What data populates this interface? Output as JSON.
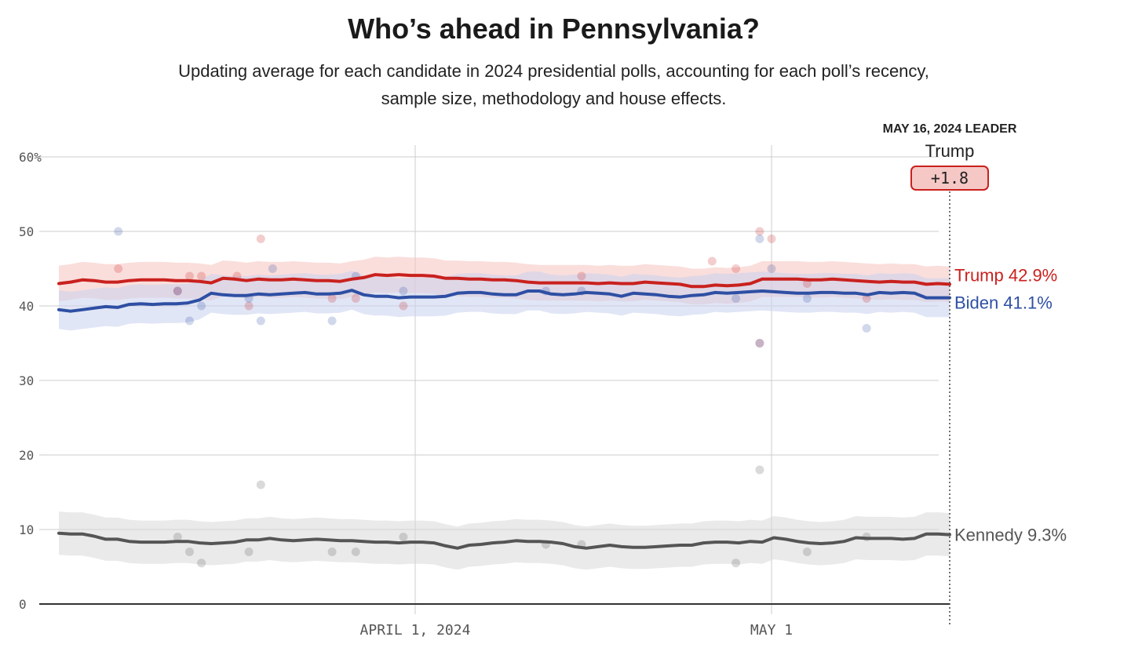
{
  "title": "Who’s ahead in Pennsylvania?",
  "subtitle_lines": [
    "Updating average for each candidate in 2024 presidential polls, accounting for each poll’s recency,",
    "sample size, methodology and house effects."
  ],
  "leader": {
    "heading": "MAY 16, 2024 LEADER",
    "name": "Trump",
    "margin": "+1.8"
  },
  "colors": {
    "trump": "#c9211e",
    "trump_band": "#f5c2c0",
    "biden": "#2e4fa3",
    "biden_band": "#c9d2ee",
    "kennedy": "#555555",
    "kennedy_band": "#d9d9d9",
    "grid": "#cccccc",
    "axis": "#333333"
  },
  "chart_data": {
    "type": "line",
    "x_range": [
      "2024-03-02",
      "2024-05-16"
    ],
    "ylim": [
      0,
      60
    ],
    "y_ticks": [
      0,
      10,
      20,
      30,
      40,
      50,
      60
    ],
    "y_tick_labels": [
      "0",
      "10",
      "20",
      "30",
      "40",
      "50",
      "60%"
    ],
    "x_ticks": [
      {
        "date": "2024-04-01",
        "label": "APRIL 1, 2024"
      },
      {
        "date": "2024-05-01",
        "label": "MAY 1"
      }
    ],
    "grid": true,
    "series": [
      {
        "name": "Trump",
        "end_label": "Trump 42.9%",
        "color_key": "trump",
        "band_width": 2.4,
        "average": [
          43.0,
          43.2,
          43.5,
          43.4,
          43.2,
          43.2,
          43.4,
          43.5,
          43.5,
          43.5,
          43.4,
          43.4,
          43.3,
          43.1,
          43.7,
          43.6,
          43.4,
          43.6,
          43.5,
          43.5,
          43.6,
          43.5,
          43.4,
          43.4,
          43.3,
          43.6,
          43.8,
          44.2,
          44.1,
          44.2,
          44.1,
          44.1,
          44.0,
          43.7,
          43.7,
          43.6,
          43.6,
          43.5,
          43.5,
          43.4,
          43.2,
          43.1,
          43.1,
          43.1,
          43.1,
          43.1,
          43.0,
          43.1,
          43.0,
          43.0,
          43.2,
          43.1,
          43.0,
          42.9,
          42.6,
          42.6,
          42.8,
          42.7,
          42.8,
          43.0,
          43.6,
          43.6,
          43.6,
          43.6,
          43.5,
          43.5,
          43.6,
          43.5,
          43.4,
          43.3,
          43.2,
          43.3,
          43.2,
          43.2,
          42.9,
          43.0,
          42.9
        ],
        "polls": [
          [
            "2024-03-07",
            45
          ],
          [
            "2024-03-12",
            42
          ],
          [
            "2024-03-13",
            44
          ],
          [
            "2024-03-14",
            44
          ],
          [
            "2024-03-17",
            44
          ],
          [
            "2024-03-18",
            40
          ],
          [
            "2024-03-19",
            49
          ],
          [
            "2024-03-25",
            41
          ],
          [
            "2024-03-27",
            41
          ],
          [
            "2024-03-31",
            40
          ],
          [
            "2024-04-15",
            44
          ],
          [
            "2024-04-26",
            46
          ],
          [
            "2024-04-30",
            50
          ],
          [
            "2024-04-30",
            35
          ],
          [
            "2024-04-28",
            45
          ],
          [
            "2024-05-01",
            49
          ],
          [
            "2024-05-04",
            43
          ],
          [
            "2024-05-09",
            41
          ]
        ]
      },
      {
        "name": "Biden",
        "end_label": "Biden 41.1%",
        "color_key": "biden",
        "band_width": 2.6,
        "average": [
          39.5,
          39.3,
          39.5,
          39.7,
          39.9,
          39.8,
          40.2,
          40.3,
          40.2,
          40.3,
          40.3,
          40.4,
          40.8,
          41.7,
          41.5,
          41.4,
          41.4,
          41.6,
          41.5,
          41.6,
          41.7,
          41.8,
          41.6,
          41.6,
          41.7,
          42.1,
          41.5,
          41.3,
          41.3,
          41.1,
          41.2,
          41.2,
          41.2,
          41.3,
          41.7,
          41.8,
          41.8,
          41.6,
          41.5,
          41.5,
          42.0,
          42.0,
          41.6,
          41.5,
          41.6,
          41.8,
          41.7,
          41.6,
          41.3,
          41.7,
          41.6,
          41.5,
          41.3,
          41.2,
          41.4,
          41.5,
          41.8,
          41.7,
          41.8,
          41.9,
          42.0,
          41.9,
          41.8,
          41.7,
          41.7,
          41.8,
          41.8,
          41.7,
          41.7,
          41.5,
          41.8,
          41.7,
          41.8,
          41.7,
          41.1,
          41.1,
          41.1
        ],
        "polls": [
          [
            "2024-03-07",
            50
          ],
          [
            "2024-03-12",
            42
          ],
          [
            "2024-03-13",
            38
          ],
          [
            "2024-03-14",
            40
          ],
          [
            "2024-03-18",
            41
          ],
          [
            "2024-03-19",
            38
          ],
          [
            "2024-03-20",
            45
          ],
          [
            "2024-03-25",
            38
          ],
          [
            "2024-03-27",
            44
          ],
          [
            "2024-03-31",
            42
          ],
          [
            "2024-04-12",
            42
          ],
          [
            "2024-04-15",
            42
          ],
          [
            "2024-04-30",
            49
          ],
          [
            "2024-04-30",
            35
          ],
          [
            "2024-05-01",
            45
          ],
          [
            "2024-04-28",
            41
          ],
          [
            "2024-05-04",
            41
          ],
          [
            "2024-05-09",
            37
          ]
        ]
      },
      {
        "name": "Kennedy",
        "end_label": "Kennedy 9.3%",
        "color_key": "kennedy",
        "band_width": 2.9,
        "average": [
          9.5,
          9.4,
          9.4,
          9.1,
          8.7,
          8.7,
          8.4,
          8.3,
          8.3,
          8.3,
          8.4,
          8.4,
          8.2,
          8.1,
          8.2,
          8.3,
          8.6,
          8.6,
          8.8,
          8.6,
          8.5,
          8.6,
          8.7,
          8.6,
          8.5,
          8.5,
          8.4,
          8.3,
          8.3,
          8.2,
          8.3,
          8.3,
          8.2,
          7.8,
          7.5,
          7.9,
          8.0,
          8.2,
          8.3,
          8.5,
          8.4,
          8.4,
          8.3,
          8.1,
          7.7,
          7.5,
          7.7,
          7.9,
          7.7,
          7.6,
          7.6,
          7.7,
          7.8,
          7.9,
          7.9,
          8.2,
          8.3,
          8.3,
          8.2,
          8.4,
          8.3,
          8.9,
          8.7,
          8.4,
          8.2,
          8.1,
          8.2,
          8.4,
          8.9,
          8.8,
          8.8,
          8.8,
          8.7,
          8.8,
          9.4,
          9.4,
          9.3
        ],
        "polls": [
          [
            "2024-03-12",
            9
          ],
          [
            "2024-03-13",
            7
          ],
          [
            "2024-03-14",
            5.5
          ],
          [
            "2024-03-18",
            7
          ],
          [
            "2024-03-19",
            16
          ],
          [
            "2024-03-25",
            7
          ],
          [
            "2024-03-27",
            7
          ],
          [
            "2024-03-31",
            9
          ],
          [
            "2024-04-12",
            8
          ],
          [
            "2024-04-15",
            8
          ],
          [
            "2024-04-30",
            18
          ],
          [
            "2024-04-28",
            5.5
          ],
          [
            "2024-05-04",
            7
          ],
          [
            "2024-05-09",
            9
          ]
        ]
      }
    ]
  }
}
